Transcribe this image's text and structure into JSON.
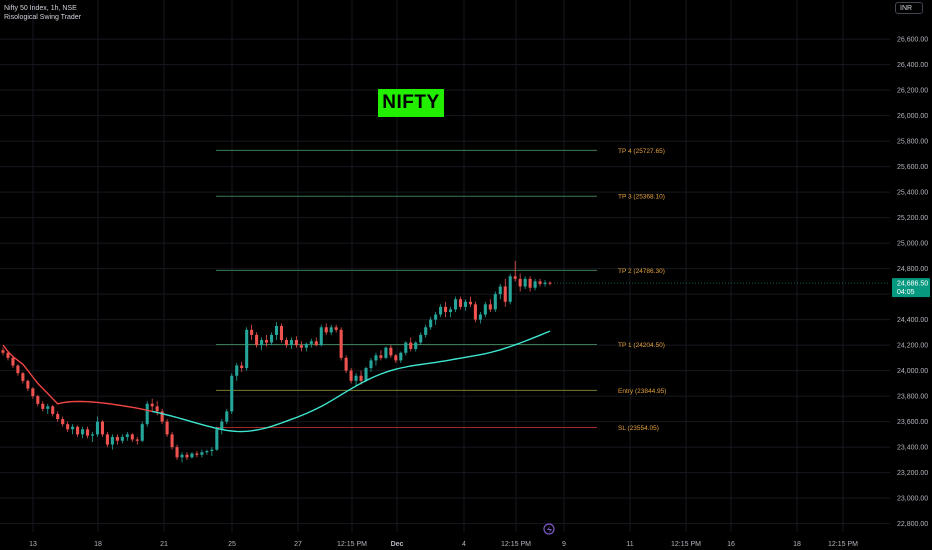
{
  "legend": {
    "symbol_line": "Nifty 50 Index, 1h, NSE",
    "indicator": "Risological Swing Trader"
  },
  "currency": "INR",
  "badge": "NIFTY",
  "colors": {
    "background": "#000000",
    "grid": "#16181f",
    "up": "#26a69a",
    "down": "#ef5350",
    "sma_below": "#ef4444",
    "sma_above": "#3ee6d0",
    "tp_line": "#3a7a55",
    "entry_line": "#7a7a33",
    "sl_line": "#a02a2a",
    "level_label": "#e6a23c",
    "axis_text": "#b2b5be",
    "price_tag": "#089981"
  },
  "chart_data": {
    "type": "candlestick",
    "title": "Nifty 50 Index, 1h, NSE",
    "indicator": "Risological Swing Trader",
    "currency": "INR",
    "y_axis": {
      "position": "right",
      "range": [
        22750,
        26750
      ],
      "ticks": [
        "22,800.00",
        "23,000.00",
        "23,200.00",
        "23,400.00",
        "23,600.00",
        "23,800.00",
        "24,000.00",
        "24,200.00",
        "24,400.00",
        "24,600.00",
        "24,800.00",
        "25,000.00",
        "25,200.00",
        "25,400.00",
        "25,600.00",
        "25,800.00",
        "26,000.00",
        "26,200.00",
        "26,400.00",
        "26,600.00"
      ]
    },
    "x_axis": {
      "ticks": [
        "13",
        "18",
        "21",
        "25",
        "27",
        "12:15 PM",
        "Dec",
        "4",
        "12:15 PM",
        "9",
        "11",
        "12:15 PM",
        "16",
        "18",
        "12:15 PM"
      ]
    },
    "levels": [
      {
        "label": "TP 4 (25727.65)",
        "value": 25727.65,
        "kind": "tp"
      },
      {
        "label": "TP 3 (25368.10)",
        "value": 25368.1,
        "kind": "tp"
      },
      {
        "label": "TP 2 (24786.30)",
        "value": 24786.3,
        "kind": "tp"
      },
      {
        "label": "TP 1 (24204.50)",
        "value": 24204.5,
        "kind": "tp"
      },
      {
        "label": "Entry (23844.95)",
        "value": 23844.95,
        "kind": "entry"
      },
      {
        "label": "SL (23554.05)",
        "value": 23554.05,
        "kind": "sl"
      }
    ],
    "last_price": {
      "value": 24686.5,
      "label": "24,686.50",
      "countdown": "04:05"
    },
    "candles": [
      [
        24160,
        24180,
        24120,
        24140
      ],
      [
        24140,
        24150,
        24080,
        24100
      ],
      [
        24100,
        24110,
        24020,
        24040
      ],
      [
        24040,
        24050,
        23960,
        23980
      ],
      [
        23980,
        23990,
        23900,
        23920
      ],
      [
        23920,
        23930,
        23840,
        23860
      ],
      [
        23860,
        23870,
        23780,
        23800
      ],
      [
        23800,
        23810,
        23720,
        23740
      ],
      [
        23740,
        23760,
        23680,
        23700
      ],
      [
        23700,
        23740,
        23660,
        23720
      ],
      [
        23720,
        23730,
        23640,
        23660
      ],
      [
        23660,
        23680,
        23600,
        23620
      ],
      [
        23620,
        23640,
        23560,
        23580
      ],
      [
        23580,
        23600,
        23520,
        23540
      ],
      [
        23540,
        23580,
        23500,
        23560
      ],
      [
        23560,
        23570,
        23480,
        23500
      ],
      [
        23500,
        23560,
        23470,
        23540
      ],
      [
        23540,
        23560,
        23470,
        23490
      ],
      [
        23490,
        23520,
        23440,
        23500
      ],
      [
        23500,
        23640,
        23480,
        23600
      ],
      [
        23600,
        23610,
        23480,
        23500
      ],
      [
        23500,
        23520,
        23400,
        23420
      ],
      [
        23420,
        23500,
        23380,
        23480
      ],
      [
        23480,
        23500,
        23420,
        23450
      ],
      [
        23450,
        23500,
        23430,
        23480
      ],
      [
        23480,
        23520,
        23450,
        23500
      ],
      [
        23500,
        23510,
        23440,
        23460
      ],
      [
        23460,
        23480,
        23420,
        23450
      ],
      [
        23450,
        23600,
        23440,
        23580
      ],
      [
        23580,
        23760,
        23560,
        23740
      ],
      [
        23740,
        23780,
        23680,
        23720
      ],
      [
        23720,
        23760,
        23650,
        23680
      ],
      [
        23680,
        23700,
        23580,
        23600
      ],
      [
        23600,
        23620,
        23480,
        23500
      ],
      [
        23500,
        23520,
        23380,
        23400
      ],
      [
        23400,
        23420,
        23300,
        23320
      ],
      [
        23320,
        23360,
        23280,
        23340
      ],
      [
        23340,
        23360,
        23300,
        23320
      ],
      [
        23320,
        23360,
        23310,
        23350
      ],
      [
        23350,
        23370,
        23320,
        23340
      ],
      [
        23340,
        23380,
        23320,
        23360
      ],
      [
        23360,
        23380,
        23340,
        23370
      ],
      [
        23370,
        23400,
        23330,
        23380
      ],
      [
        23380,
        23560,
        23370,
        23540
      ],
      [
        23540,
        23620,
        23500,
        23600
      ],
      [
        23600,
        23700,
        23580,
        23680
      ],
      [
        23680,
        23980,
        23660,
        23960
      ],
      [
        23960,
        24060,
        23920,
        24040
      ],
      [
        24040,
        24070,
        23990,
        24020
      ],
      [
        24020,
        24340,
        24000,
        24320
      ],
      [
        24320,
        24360,
        24240,
        24280
      ],
      [
        24280,
        24300,
        24180,
        24200
      ],
      [
        24200,
        24260,
        24160,
        24240
      ],
      [
        24240,
        24280,
        24190,
        24220
      ],
      [
        24220,
        24300,
        24200,
        24280
      ],
      [
        24280,
        24380,
        24240,
        24350
      ],
      [
        24350,
        24370,
        24220,
        24240
      ],
      [
        24240,
        24260,
        24180,
        24200
      ],
      [
        24200,
        24260,
        24170,
        24240
      ],
      [
        24240,
        24270,
        24180,
        24200
      ],
      [
        24200,
        24230,
        24150,
        24180
      ],
      [
        24180,
        24220,
        24150,
        24210
      ],
      [
        24210,
        24250,
        24180,
        24230
      ],
      [
        24230,
        24260,
        24190,
        24200
      ],
      [
        24200,
        24360,
        24190,
        24340
      ],
      [
        24340,
        24370,
        24280,
        24300
      ],
      [
        24300,
        24360,
        24280,
        24340
      ],
      [
        24340,
        24360,
        24300,
        24320
      ],
      [
        24320,
        24340,
        24080,
        24100
      ],
      [
        24100,
        24120,
        23980,
        24000
      ],
      [
        24000,
        24020,
        23900,
        23920
      ],
      [
        23920,
        23980,
        23880,
        23960
      ],
      [
        23960,
        24000,
        23890,
        23920
      ],
      [
        23920,
        24030,
        23910,
        24020
      ],
      [
        24020,
        24100,
        23990,
        24080
      ],
      [
        24080,
        24140,
        24040,
        24120
      ],
      [
        24120,
        24160,
        24080,
        24100
      ],
      [
        24100,
        24190,
        24090,
        24180
      ],
      [
        24180,
        24200,
        24100,
        24120
      ],
      [
        24120,
        24130,
        24060,
        24080
      ],
      [
        24080,
        24150,
        24060,
        24140
      ],
      [
        24140,
        24230,
        24120,
        24220
      ],
      [
        24220,
        24260,
        24150,
        24170
      ],
      [
        24170,
        24230,
        24150,
        24220
      ],
      [
        24220,
        24300,
        24200,
        24280
      ],
      [
        24280,
        24360,
        24260,
        24340
      ],
      [
        24340,
        24420,
        24320,
        24400
      ],
      [
        24400,
        24460,
        24360,
        24440
      ],
      [
        24440,
        24520,
        24420,
        24500
      ],
      [
        24500,
        24540,
        24420,
        24460
      ],
      [
        24460,
        24500,
        24420,
        24480
      ],
      [
        24480,
        24580,
        24460,
        24560
      ],
      [
        24560,
        24580,
        24480,
        24500
      ],
      [
        24500,
        24560,
        24470,
        24540
      ],
      [
        24540,
        24580,
        24500,
        24520
      ],
      [
        24520,
        24540,
        24380,
        24400
      ],
      [
        24400,
        24460,
        24370,
        24440
      ],
      [
        24440,
        24540,
        24420,
        24520
      ],
      [
        24520,
        24560,
        24460,
        24480
      ],
      [
        24480,
        24620,
        24460,
        24600
      ],
      [
        24600,
        24680,
        24560,
        24660
      ],
      [
        24660,
        24720,
        24500,
        24540
      ],
      [
        24540,
        24760,
        24520,
        24740
      ],
      [
        24740,
        24860,
        24700,
        24720
      ],
      [
        24720,
        24760,
        24620,
        24660
      ],
      [
        24660,
        24740,
        24640,
        24720
      ],
      [
        24720,
        24740,
        24620,
        24650
      ],
      [
        24650,
        24720,
        24630,
        24700
      ],
      [
        24700,
        24720,
        24660,
        24680
      ],
      [
        24680,
        24710,
        24660,
        24690
      ],
      [
        24690,
        24700,
        24670,
        24686.5
      ]
    ],
    "sma": {
      "name": "",
      "start_values": [
        24200,
        24150,
        24110,
        24080,
        24050,
        24000,
        23950,
        23900,
        23860,
        23820,
        23780,
        23740
      ],
      "end_value": 24310
    }
  }
}
